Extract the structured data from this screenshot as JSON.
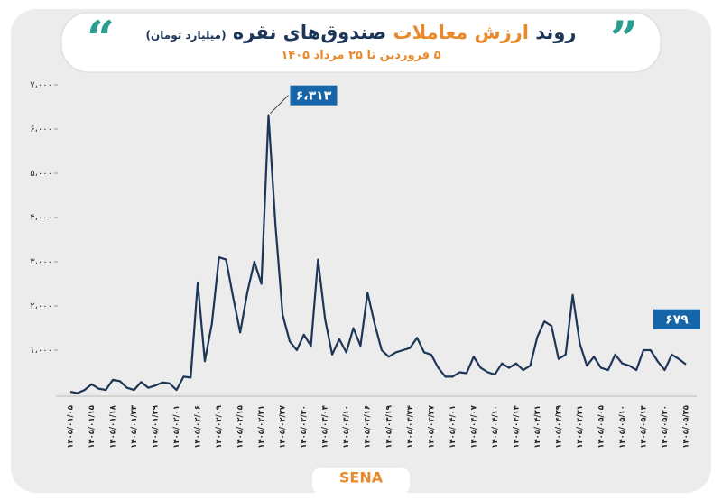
{
  "logo": "SENA",
  "chart_data": {
    "type": "line",
    "title_start": "روند",
    "title_highlight": "ارزش معاملات",
    "title_end": "صندوق‌های نقره",
    "unit": "(میلیارد تومان)",
    "subtitle": "۵ فروردین تا ۲۵ مرداد ۱۴۰۵",
    "color": "#1d3557",
    "label_color": "#1565a8",
    "ylim": [
      0,
      7000
    ],
    "yticks": [
      {
        "value": 1000,
        "label": "۱،۰۰۰"
      },
      {
        "value": 2000,
        "label": "۲،۰۰۰"
      },
      {
        "value": 3000,
        "label": "۳،۰۰۰"
      },
      {
        "value": 4000,
        "label": "۴،۰۰۰"
      },
      {
        "value": 5000,
        "label": "۵،۰۰۰"
      },
      {
        "value": 6000,
        "label": "۶،۰۰۰"
      },
      {
        "value": 7000,
        "label": "۷،۰۰۰"
      }
    ],
    "categories": [
      "۱۴۰۵/۰۱/۰۵",
      null,
      null,
      "۱۴۰۵/۰۱/۱۵",
      null,
      null,
      "۱۴۰۵/۰۱/۱۸",
      null,
      null,
      "۱۴۰۵/۰۱/۲۳",
      null,
      null,
      "۱۴۰۵/۰۱/۲۹",
      null,
      null,
      "۱۴۰۵/۰۲/۰۱",
      null,
      null,
      "۱۴۰۵/۰۲/۰۶",
      null,
      null,
      "۱۴۰۵/۰۲/۰۹",
      null,
      null,
      "۱۴۰۵/۰۲/۱۵",
      null,
      null,
      "۱۴۰۵/۰۲/۲۱",
      null,
      null,
      "۱۴۰۵/۰۲/۲۷",
      null,
      null,
      "۱۴۰۵/۰۲/۳۰",
      null,
      null,
      "۱۴۰۵/۰۳/۰۴",
      null,
      null,
      "۱۴۰۵/۰۳/۱۰",
      null,
      null,
      "۱۴۰۵/۰۳/۱۶",
      null,
      null,
      "۱۴۰۵/۰۳/۱۹",
      null,
      null,
      "۱۴۰۵/۰۳/۲۴",
      null,
      null,
      "۱۴۰۵/۰۳/۲۷",
      null,
      null,
      "۱۴۰۵/۰۴/۰۱",
      null,
      null,
      "۱۴۰۵/۰۴/۰۷",
      null,
      null,
      "۱۴۰۵/۰۴/۱۰",
      null,
      null,
      "۱۴۰۵/۰۴/۱۴",
      null,
      null,
      "۱۴۰۵/۰۴/۲۱",
      null,
      null,
      "۱۴۰۵/۰۴/۲۹",
      null,
      null,
      "۱۴۰۵/۰۴/۳۱",
      null,
      null,
      "۱۴۰۵/۰۵/۰۵",
      null,
      null,
      "۱۴۰۵/۰۵/۱۰",
      null,
      null,
      "۱۴۰۵/۰۵/۱۴",
      null,
      null,
      "۱۴۰۵/۰۵/۲۰",
      null,
      null,
      "۱۴۰۵/۰۵/۲۵"
    ],
    "values": [
      60,
      30,
      100,
      230,
      130,
      100,
      330,
      300,
      150,
      100,
      280,
      150,
      200,
      270,
      250,
      100,
      400,
      380,
      2530,
      750,
      1600,
      3100,
      3050,
      2200,
      1400,
      2300,
      3000,
      2500,
      6313,
      3800,
      1800,
      1200,
      1000,
      1350,
      1100,
      3050,
      1700,
      900,
      1250,
      950,
      1500,
      1100,
      2300,
      1600,
      1000,
      850,
      950,
      1000,
      1050,
      1280,
      950,
      900,
      600,
      400,
      400,
      500,
      480,
      850,
      600,
      500,
      450,
      700,
      600,
      700,
      550,
      650,
      1300,
      1650,
      1550,
      800,
      900,
      2250,
      1150,
      650,
      850,
      600,
      550,
      900,
      700,
      650,
      550,
      1000,
      1000,
      750,
      550,
      900,
      800,
      679
    ],
    "value_labels": [
      null,
      null,
      null,
      null,
      null,
      null,
      null,
      null,
      null,
      null,
      null,
      null,
      null,
      null,
      null,
      null,
      null,
      null,
      null,
      null,
      null,
      null,
      null,
      null,
      null,
      null,
      null,
      null,
      "۶،۳۱۳",
      null,
      null,
      null,
      null,
      null,
      null,
      null,
      null,
      null,
      null,
      null,
      null,
      null,
      null,
      null,
      null,
      null,
      null,
      null,
      null,
      null,
      null,
      null,
      null,
      null,
      null,
      null,
      null,
      null,
      null,
      null,
      null,
      null,
      null,
      null,
      null,
      null,
      null,
      null,
      null,
      null,
      null,
      null,
      null,
      null,
      null,
      null,
      null,
      null,
      null,
      null,
      null,
      null,
      null,
      null,
      null,
      null,
      null,
      "۶۷۹"
    ]
  }
}
